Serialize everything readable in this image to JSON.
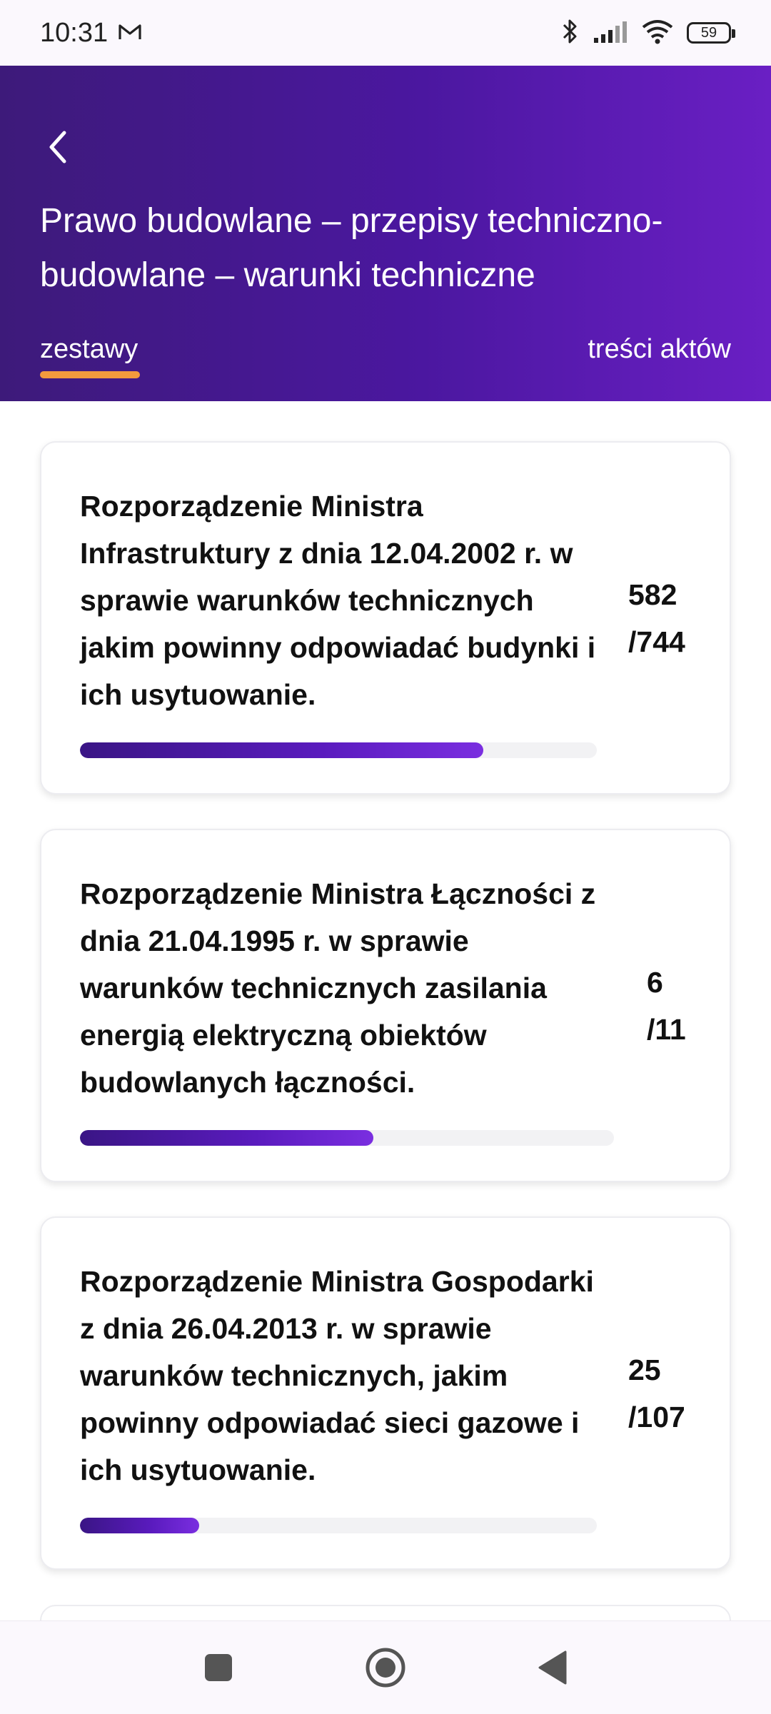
{
  "status_bar": {
    "time": "10:31",
    "battery": "59"
  },
  "header": {
    "title": "Prawo budowlane – przepisy techniczno-budowlane – warunki techniczne",
    "tabs": [
      {
        "label": "zestawy",
        "active": true
      },
      {
        "label": "treści aktów",
        "active": false
      }
    ]
  },
  "colors": {
    "header_gradient_start": "#3d1a7a",
    "header_gradient_end": "#6a1fc4",
    "tab_indicator": "#f39a3d",
    "progress_fill": "#5a1bbe"
  },
  "cards": [
    {
      "title": "Rozporządzenie Ministra Infrastruktury z dnia 12.04.2002 r. w sprawie warunków technicznych jakim powinny odpowiadać budynki i ich usytuowanie.",
      "done": "582",
      "total": "/744",
      "progress": 0.78
    },
    {
      "title": "Rozporządzenie Ministra Łączności z dnia 21.04.1995 r. w sprawie warunków technicznych zasilania energią elektryczną obiektów budowlanych łączności.",
      "done": "6",
      "total": "/11",
      "progress": 0.55
    },
    {
      "title": "Rozporządzenie Ministra Gospodarki z dnia 26.04.2013 r. w sprawie warunków technicznych, jakim powinny odpowiadać sieci gazowe i ich usytuowanie.",
      "done": "25",
      "total": "/107",
      "progress": 0.23
    }
  ],
  "icons": {
    "status_left": [
      "gmail-icon"
    ],
    "status_right": [
      "bluetooth-icon",
      "signal-icon",
      "wifi-icon",
      "battery-icon"
    ],
    "header": [
      "back-arrow-icon"
    ],
    "nav": [
      "recents-square-icon",
      "home-circle-icon",
      "back-triangle-icon"
    ]
  }
}
